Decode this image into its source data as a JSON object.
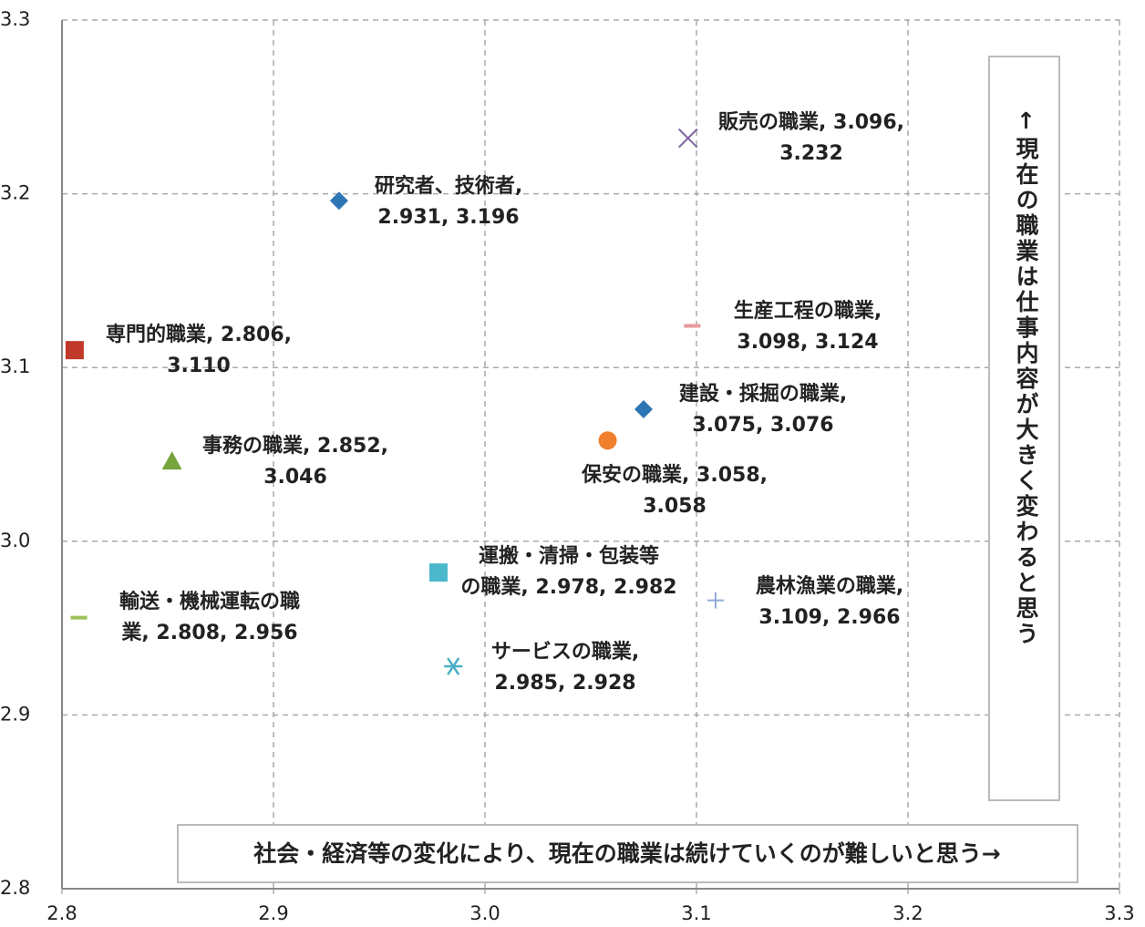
{
  "chart_data": {
    "type": "scatter",
    "xlim": [
      2.8,
      3.3
    ],
    "xticks": [
      2.8,
      2.9,
      {
        "value": 3,
        "label": "3.0"
      },
      3.1,
      3.2,
      3.3
    ],
    "ylim": [
      2.8,
      3.3
    ],
    "yticks": [
      2.8,
      2.9,
      {
        "value": 3,
        "label": "3.0"
      },
      3.1,
      3.2,
      3.3
    ],
    "grid": true,
    "x_label": "社会・経済等の変化により、現在の職業は続けていくのが難しいと思う→",
    "y_label": "↑現在の職業は仕事内容が大きく変わると思う",
    "series": [
      {
        "label": [
          "研究者、技術者,",
          "2.931, 3.196"
        ],
        "x": 2.931,
        "y": 3.196,
        "marker": "diamond",
        "color": "#2e75b6"
      },
      {
        "label": [
          "販売の職業, 3.096,",
          "3.232"
        ],
        "x": 3.096,
        "y": 3.232,
        "marker": "x",
        "color": "#8064a2"
      },
      {
        "label": [
          "専門的職業, 2.806,",
          "3.110"
        ],
        "x": 2.806,
        "y": 3.11,
        "marker": "square",
        "color": "#c0392b"
      },
      {
        "label": [
          "生産工程の職業,",
          "3.098, 3.124"
        ],
        "x": 3.098,
        "y": 3.124,
        "marker": "dash",
        "color": "#e89a9a"
      },
      {
        "label": [
          "建設・採掘の職業,",
          "3.075, 3.076"
        ],
        "x": 3.075,
        "y": 3.076,
        "marker": "diamond",
        "color": "#2e75b6"
      },
      {
        "label": [
          "事務の職業, 2.852,",
          "3.046"
        ],
        "x": 2.852,
        "y": 3.046,
        "marker": "triangle",
        "color": "#77a33d"
      },
      {
        "label": [
          "保安の職業, 3.058,",
          "3.058"
        ],
        "x": 3.058,
        "y": 3.058,
        "marker": "circle",
        "color": "#f0802e"
      },
      {
        "label": [
          "運搬・清掃・包装等",
          "の職業, 2.978, 2.982"
        ],
        "x": 2.978,
        "y": 2.982,
        "marker": "square",
        "color": "#4bb8cc"
      },
      {
        "label": [
          "輸送・機械運転の職",
          "業, 2.808, 2.956"
        ],
        "x": 2.808,
        "y": 2.956,
        "marker": "dash",
        "color": "#9bc25a"
      },
      {
        "label": [
          "農林漁業の職業,",
          "3.109, 2.966"
        ],
        "x": 3.109,
        "y": 2.966,
        "marker": "plus",
        "color": "#8eaadb"
      },
      {
        "label": [
          "サービスの職業,",
          "2.985, 2.928"
        ],
        "x": 2.985,
        "y": 2.928,
        "marker": "asterisk",
        "color": "#4bacc6"
      }
    ]
  }
}
